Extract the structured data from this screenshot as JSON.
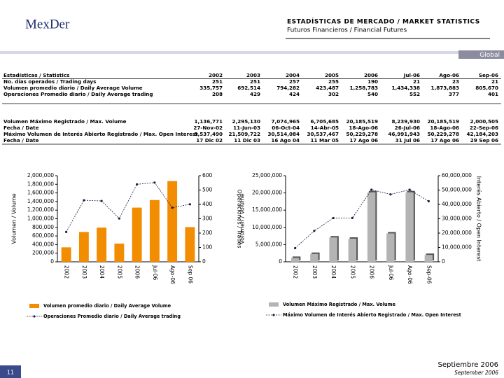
{
  "header": {
    "logo": "MexDer",
    "title": "ESTADÍSTICAS DE MERCADO / MARKET STATISTICS",
    "subtitle": "Futuros Financieros / Financial Futures",
    "banner": "Global"
  },
  "table": {
    "header": [
      "Estadísticas / Statistics",
      "2002",
      "2003",
      "2004",
      "2005",
      "2006",
      "Jul-06",
      "Ago-06",
      "Sep-06"
    ],
    "rows": [
      [
        "No. días operados / Trading days",
        "251",
        "251",
        "257",
        "255",
        "190",
        "21",
        "23",
        "21"
      ],
      [
        "Volumen promedio diario / Daily Average Volume",
        "335,757",
        "692,514",
        "794,282",
        "423,487",
        "1,258,783",
        "1,434,338",
        "1,873,883",
        "805,670"
      ],
      [
        "Operaciones Promedio diario / Daily Average trading",
        "208",
        "429",
        "424",
        "302",
        "540",
        "552",
        "377",
        "401"
      ],
      [
        "Volumen Máximo Registrado / Max. Volume",
        "1,136,771",
        "2,295,130",
        "7,074,965",
        "6,705,685",
        "20,185,519",
        "8,239,930",
        "20,185,519",
        "2,000,505"
      ],
      [
        "Fecha / Date",
        "27-Nov-02",
        "11-Jun-03",
        "06-Oct-04",
        "14-Abr-05",
        "18-Ago-06",
        "26-Jul-06",
        "18-Ago-06",
        "22-Sep-06"
      ],
      [
        "Máximo Volumen de Interés Abierto Registrado / Max. Open Interest",
        "9,537,490",
        "21,509,722",
        "30,514,084",
        "30,537,467",
        "50,229,278",
        "46,991,943",
        "50,229,278",
        "42,184,203"
      ],
      [
        "Fecha / Date",
        "17 Dic 02",
        "11 Dic 03",
        "16 Ago 04",
        "11 Mar 05",
        "17 Ago 06",
        "31 Jul 06",
        "17 Ago 06",
        "29 Sep 06"
      ]
    ]
  },
  "chart_data": [
    {
      "type": "combo",
      "ylabel": "Volumen / Volume",
      "y2label": "Operaciones / Trades",
      "categories": [
        "2002",
        "2003",
        "2004",
        "2005",
        "2006",
        "Jul-06",
        "Ago-06",
        "Sep 06"
      ],
      "series": [
        {
          "name": "Volumen promedio diario / Daily Average Volume",
          "type": "bar",
          "color": "#f28c00",
          "values": [
            335757,
            692514,
            794282,
            423487,
            1258783,
            1434338,
            1873883,
            805670
          ]
        },
        {
          "name": "Operaciones Promedio diario / Daily Average trading",
          "type": "line",
          "axis": "y2",
          "color": "#1c1c3c",
          "values": [
            208,
            429,
            424,
            302,
            540,
            552,
            377,
            401
          ]
        }
      ],
      "ylim": [
        0,
        2000000
      ],
      "yticks": [
        0,
        {
          "value": 200000,
          "label": "200,000"
        },
        {
          "value": 400000,
          "label": "400,000"
        },
        {
          "value": 600000,
          "label": "600,000"
        },
        {
          "value": 800000,
          "label": "800,000"
        },
        {
          "value": 1000000,
          "label": "1,000,000"
        },
        {
          "value": 1200000,
          "label": "1,200,000"
        },
        {
          "value": 1400000,
          "label": "1,400,000"
        },
        {
          "value": 1600000,
          "label": "1,600,000"
        },
        {
          "value": 1800000,
          "label": "1,800,000"
        },
        {
          "value": 2000000,
          "label": "2,000,000"
        }
      ],
      "y2lim": [
        0,
        600
      ],
      "y2ticks": [
        0,
        100,
        200,
        300,
        400,
        500,
        600
      ]
    },
    {
      "type": "combo",
      "ylabel": "Volumen / Volume",
      "y2label": "Interés Abierto / Open Interest",
      "categories": [
        "2002",
        "2003",
        "2004",
        "2005",
        "2006",
        "Jul-06",
        "Ago-06",
        "Sep-06"
      ],
      "series": [
        {
          "name": "Volumen Máximo Registrado / Max. Volume",
          "type": "bar",
          "color": "#b4b4b4",
          "values": [
            1136771,
            2295130,
            7074965,
            6705685,
            20185519,
            8239930,
            20185519,
            2000505
          ]
        },
        {
          "name": "Máximo Volumen de Interés Abierto Registrado / Max. Open Interest",
          "type": "line",
          "axis": "y2",
          "color": "#1c1c3c",
          "values": [
            9537490,
            21509722,
            30514084,
            30537467,
            50229278,
            46991943,
            50229278,
            42184203
          ]
        }
      ],
      "ylim": [
        0,
        25000000
      ],
      "yticks": [
        0,
        {
          "value": 5000000,
          "label": "5,000,000"
        },
        {
          "value": 10000000,
          "label": "10,000,000"
        },
        {
          "value": 15000000,
          "label": "15,000,000"
        },
        {
          "value": 20000000,
          "label": "20,000,000"
        },
        {
          "value": 25000000,
          "label": "25,000,000"
        }
      ],
      "y2lim": [
        0,
        60000000
      ],
      "y2ticks": [
        0,
        {
          "value": 10000000,
          "label": "10,000,000"
        },
        {
          "value": 20000000,
          "label": "20,000,000"
        },
        {
          "value": 30000000,
          "label": "30,000,000"
        },
        {
          "value": 40000000,
          "label": "40,000,000"
        },
        {
          "value": 50000000,
          "label": "50,000,000"
        },
        {
          "value": 60000000,
          "label": "60,000,000"
        }
      ]
    }
  ],
  "footer": {
    "page": "11",
    "date_es": "Septiembre 2006",
    "date_en": "September 2006"
  }
}
